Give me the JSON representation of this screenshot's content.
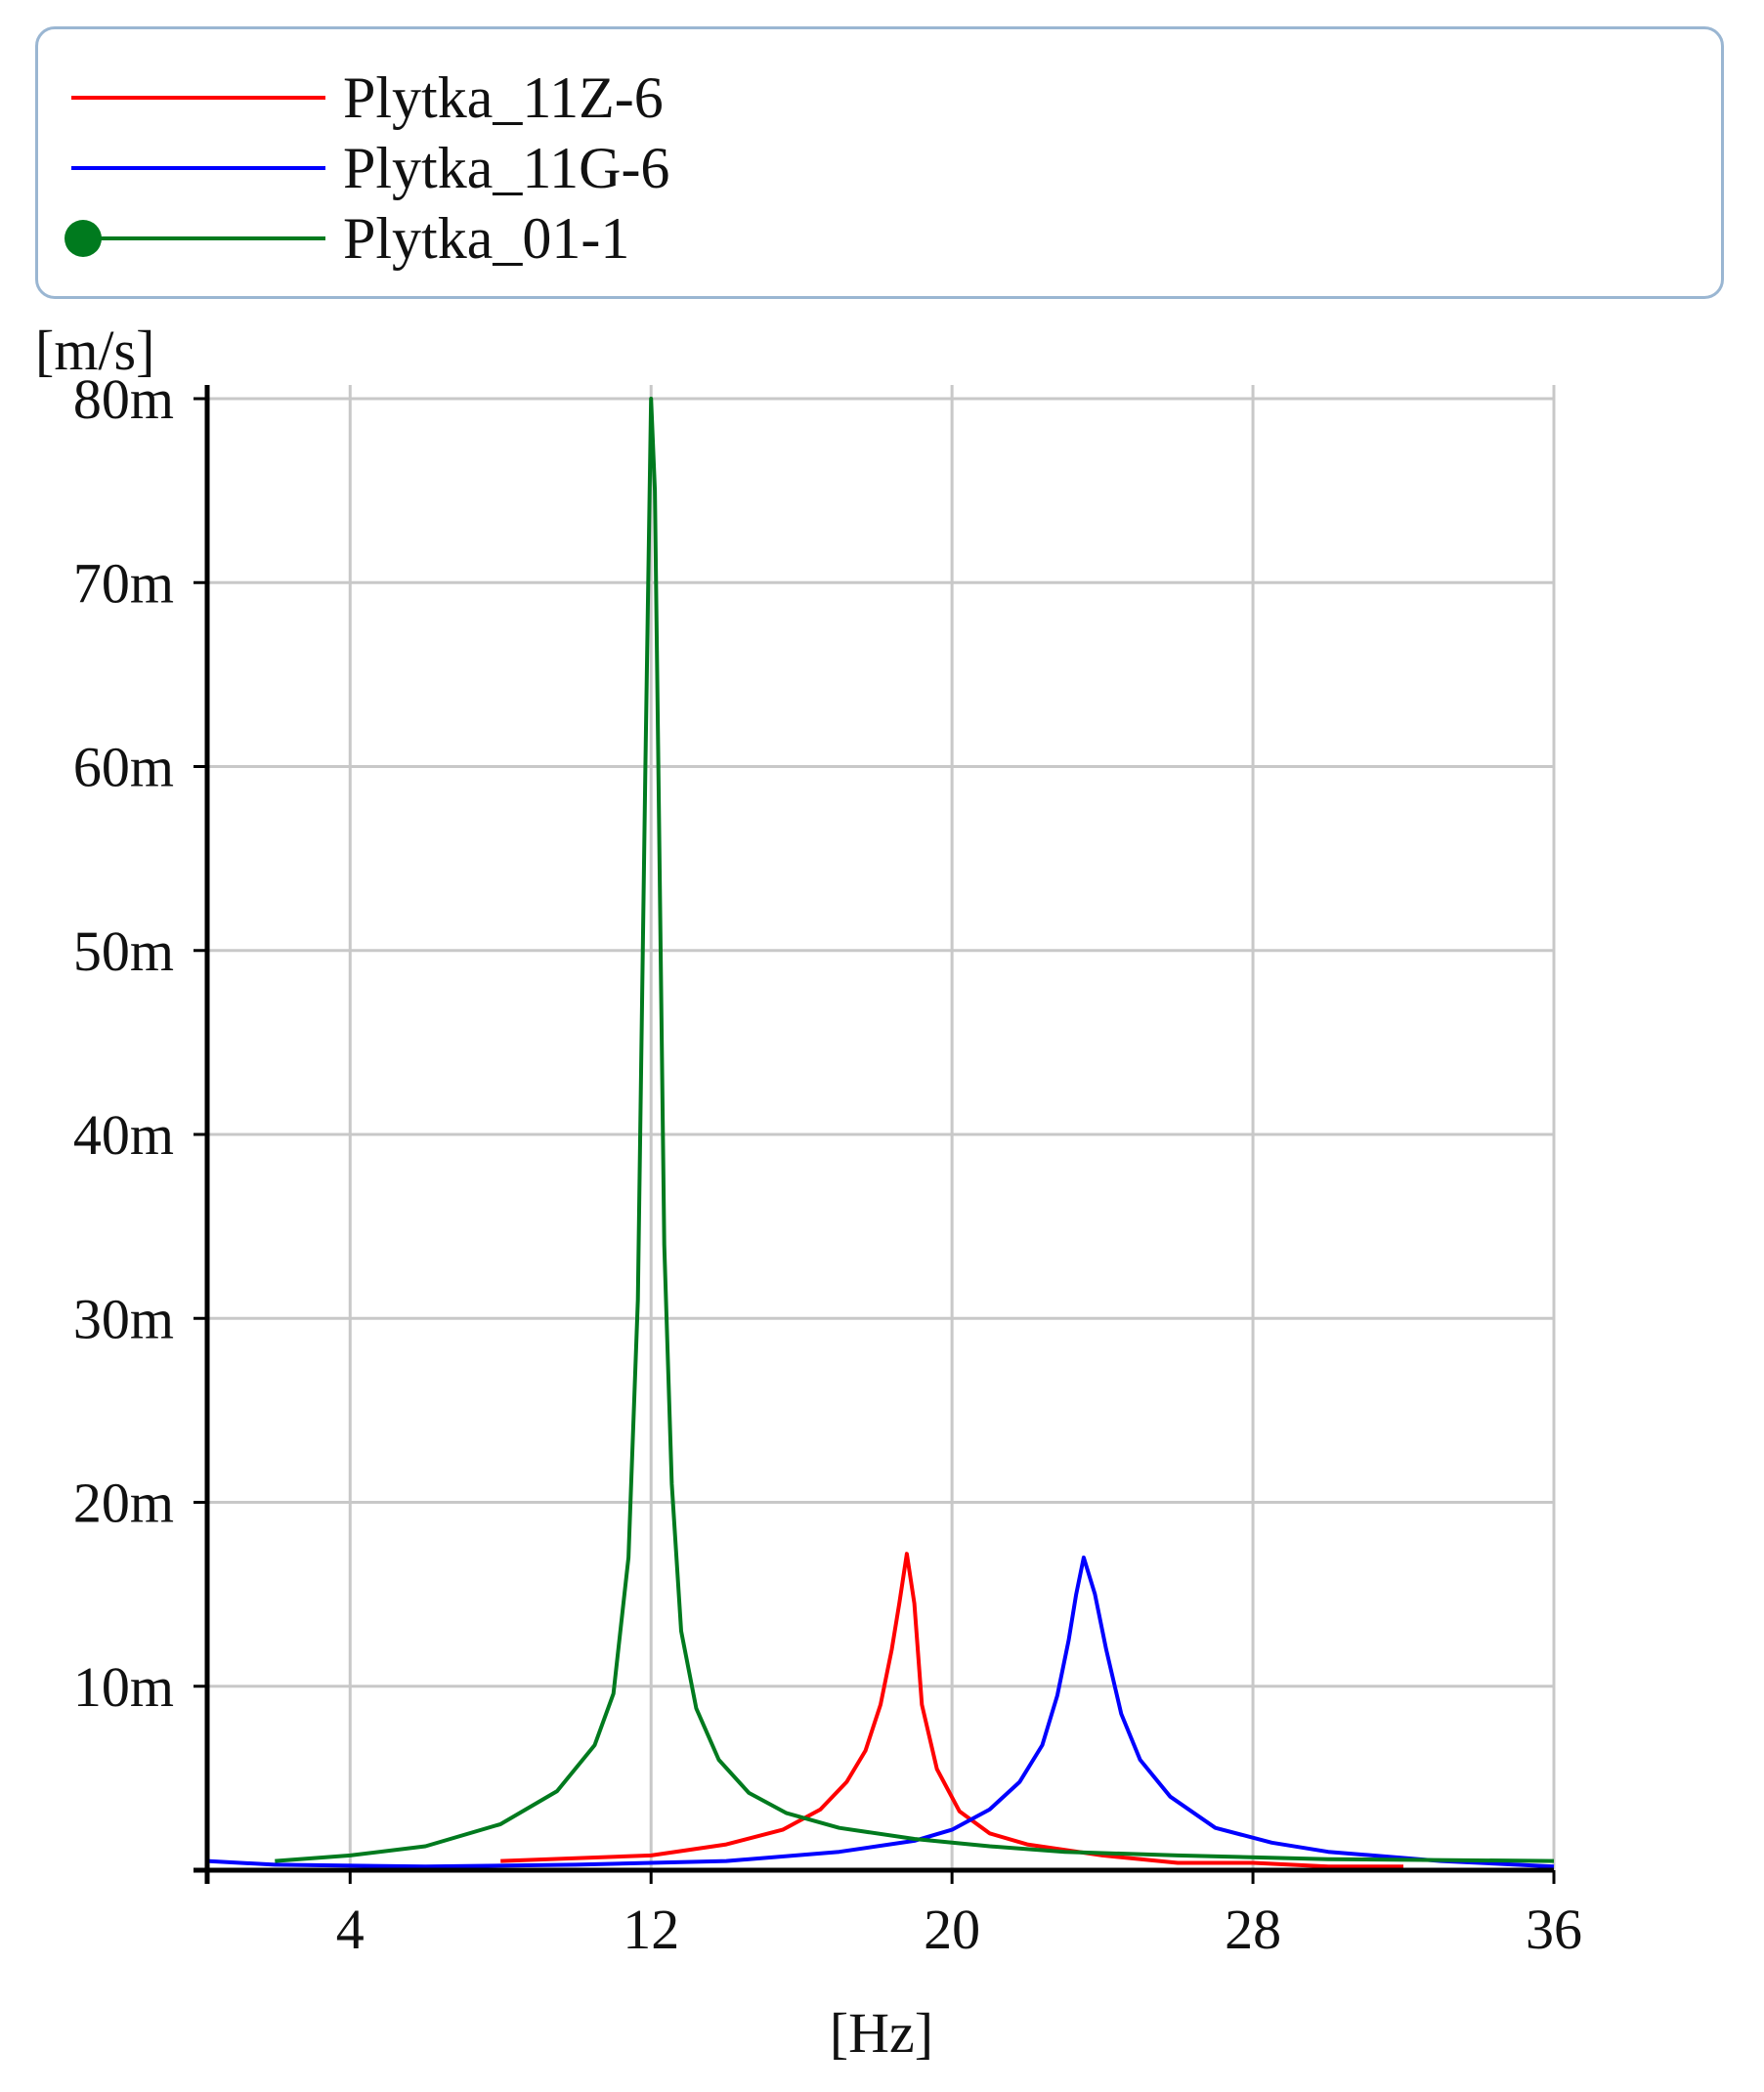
{
  "legend": {
    "entries": [
      {
        "label": "Plytka_11Z-6",
        "color": "#ff0000",
        "marker": "none"
      },
      {
        "label": "Plytka_11G-6",
        "color": "#0000ff",
        "marker": "none"
      },
      {
        "label": "Plytka_01-1",
        "color": "#007a1e",
        "marker": "dot"
      }
    ]
  },
  "chart_data": {
    "type": "line",
    "title": "",
    "xlabel": "[Hz]",
    "ylabel": "[m/s]",
    "xlim": [
      0.2,
      36
    ],
    "ylim": [
      0,
      80
    ],
    "xticks": [
      4,
      12,
      20,
      28,
      36
    ],
    "xtick_labels": [
      "4",
      "12",
      "20",
      "28",
      "36"
    ],
    "yticks": [
      10,
      20,
      30,
      40,
      50,
      60,
      70,
      80
    ],
    "ytick_labels": [
      "10m",
      "20m",
      "30m",
      "40m",
      "50m",
      "60m",
      "70m",
      "80m"
    ],
    "grid": true,
    "legend_position": "top",
    "series": [
      {
        "name": "Plytka_11Z-6",
        "color": "#ff0000",
        "x": [
          8,
          12,
          14,
          15.5,
          16.5,
          17.2,
          17.7,
          18.1,
          18.4,
          18.6,
          18.8,
          19.0,
          19.2,
          19.6,
          20.2,
          21,
          22,
          24,
          26,
          28,
          30,
          32
        ],
        "y": [
          0.5,
          0.8,
          1.4,
          2.2,
          3.3,
          4.8,
          6.5,
          9.0,
          12.0,
          14.5,
          17.2,
          14.5,
          9.0,
          5.5,
          3.2,
          2.0,
          1.4,
          0.8,
          0.4,
          0.4,
          0.2,
          0.2
        ]
      },
      {
        "name": "Plytka_11G-6",
        "color": "#0000ff",
        "x": [
          0.2,
          2,
          6,
          10,
          14,
          17,
          19,
          20,
          21,
          21.8,
          22.4,
          22.8,
          23.1,
          23.3,
          23.5,
          23.8,
          24.1,
          24.5,
          25,
          25.8,
          27,
          28.5,
          30,
          33,
          36
        ],
        "y": [
          0.5,
          0.3,
          0.2,
          0.3,
          0.5,
          1.0,
          1.6,
          2.2,
          3.3,
          4.8,
          6.8,
          9.5,
          12.5,
          15.0,
          17.0,
          15.0,
          12.0,
          8.5,
          6.0,
          4.0,
          2.3,
          1.5,
          1.0,
          0.5,
          0.2
        ]
      },
      {
        "name": "Plytka_01-1",
        "color": "#007a1e",
        "x": [
          2,
          4,
          6,
          8,
          9.5,
          10.5,
          11,
          11.4,
          11.65,
          11.85,
          12.0,
          12.1,
          12.2,
          12.35,
          12.55,
          12.8,
          13.2,
          13.8,
          14.6,
          15.6,
          17,
          19,
          21,
          23,
          26,
          30,
          36
        ],
        "y": [
          0.5,
          0.8,
          1.3,
          2.5,
          4.3,
          6.8,
          9.6,
          17.0,
          31.0,
          60.0,
          80.0,
          75.0,
          59.0,
          34.0,
          21.0,
          13.0,
          8.8,
          6.0,
          4.2,
          3.1,
          2.3,
          1.7,
          1.3,
          1.0,
          0.8,
          0.6,
          0.5
        ]
      }
    ]
  }
}
